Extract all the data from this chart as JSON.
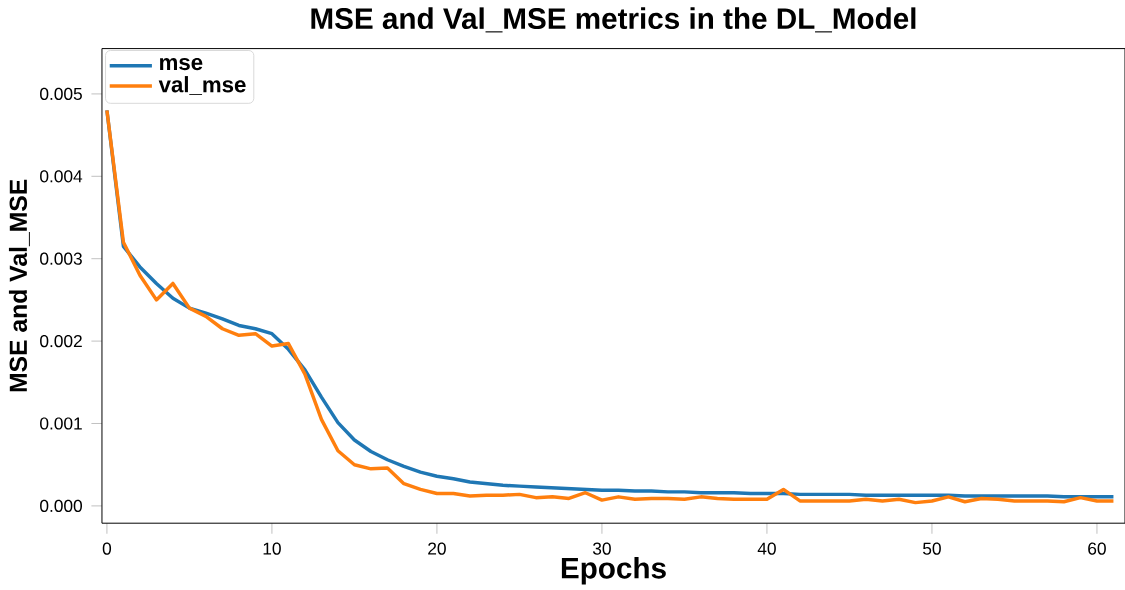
{
  "chart_data": {
    "type": "line",
    "title": "MSE and Val_MSE metrics in the DL_Model",
    "xlabel": "Epochs",
    "ylabel": "MSE and Val_MSE",
    "x": [
      0,
      1,
      2,
      3,
      4,
      5,
      6,
      7,
      8,
      9,
      10,
      11,
      12,
      13,
      14,
      15,
      16,
      17,
      18,
      19,
      20,
      21,
      22,
      23,
      24,
      25,
      26,
      27,
      28,
      29,
      30,
      31,
      32,
      33,
      34,
      35,
      36,
      37,
      38,
      39,
      40,
      41,
      42,
      43,
      44,
      45,
      46,
      47,
      48,
      49,
      50,
      51,
      52,
      53,
      54,
      55,
      56,
      57,
      58,
      59,
      60,
      61
    ],
    "series": [
      {
        "name": "mse",
        "color": "#1f77b4",
        "values": [
          0.0048,
          0.00315,
          0.0029,
          0.0027,
          0.00252,
          0.0024,
          0.00234,
          0.00227,
          0.00219,
          0.00215,
          0.00209,
          0.0019,
          0.00165,
          0.00132,
          0.00101,
          0.0008,
          0.00066,
          0.00056,
          0.00048,
          0.00041,
          0.00036,
          0.00033,
          0.00029,
          0.00027,
          0.00025,
          0.00024,
          0.00023,
          0.00022,
          0.00021,
          0.0002,
          0.00019,
          0.00019,
          0.00018,
          0.00018,
          0.00017,
          0.00017,
          0.00016,
          0.00016,
          0.00016,
          0.00015,
          0.00015,
          0.00015,
          0.00014,
          0.00014,
          0.00014,
          0.00014,
          0.00013,
          0.00013,
          0.00013,
          0.00013,
          0.00013,
          0.00013,
          0.00012,
          0.00012,
          0.00012,
          0.00012,
          0.00012,
          0.00012,
          0.00011,
          0.00011,
          0.00011,
          0.00011
        ]
      },
      {
        "name": "val_mse",
        "color": "#ff7f0e",
        "values": [
          0.0048,
          0.0032,
          0.0028,
          0.0025,
          0.0027,
          0.0024,
          0.0023,
          0.00215,
          0.00207,
          0.00209,
          0.00194,
          0.00197,
          0.0016,
          0.00105,
          0.00067,
          0.0005,
          0.00045,
          0.00046,
          0.00027,
          0.0002,
          0.00015,
          0.00015,
          0.00012,
          0.00013,
          0.00013,
          0.00014,
          0.0001,
          0.00011,
          9e-05,
          0.00016,
          7e-05,
          0.00011,
          8e-05,
          9e-05,
          9e-05,
          8e-05,
          0.00011,
          9e-05,
          8e-05,
          8e-05,
          8e-05,
          0.0002,
          6e-05,
          6e-05,
          6e-05,
          6e-05,
          8e-05,
          6e-05,
          8e-05,
          4e-05,
          6e-05,
          0.00011,
          5e-05,
          9e-05,
          8e-05,
          6e-05,
          6e-05,
          6e-05,
          5e-05,
          0.0001,
          6e-05,
          6e-05
        ]
      }
    ],
    "xlim": [
      -0.3,
      61.7
    ],
    "ylim": [
      -0.00021,
      0.00555
    ],
    "xticks": [
      0,
      10,
      20,
      30,
      40,
      50,
      60
    ],
    "yticks": [
      {
        "value": 0,
        "label": "0.000"
      },
      {
        "value": 0.001,
        "label": "0.001"
      },
      {
        "value": 0.002,
        "label": "0.002"
      },
      {
        "value": 0.003,
        "label": "0.003"
      },
      {
        "value": 0.004,
        "label": "0.004"
      },
      {
        "value": 0.005,
        "label": "0.005"
      }
    ],
    "grid": false,
    "legend": "top left",
    "marker": "none",
    "line_style": "solid"
  }
}
